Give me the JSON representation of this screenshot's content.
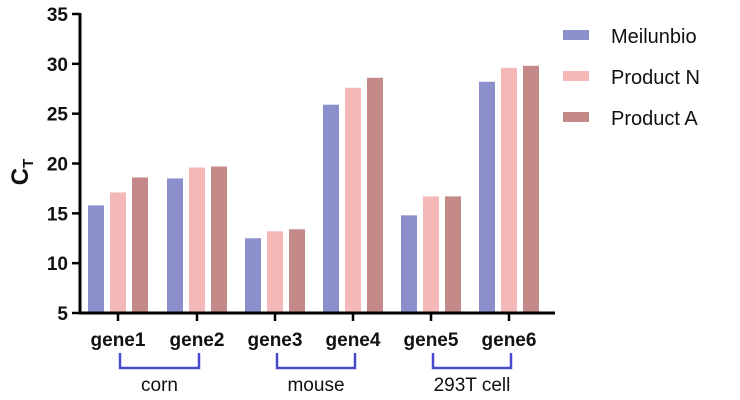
{
  "chart_data": {
    "type": "bar",
    "title": "",
    "xlabel": "",
    "ylabel": "C",
    "ylabel_subscript": "T",
    "ylim": [
      5,
      35
    ],
    "yticks": [
      5,
      10,
      15,
      20,
      25,
      30,
      35
    ],
    "grid": false,
    "legend_position": "top-right",
    "categories": [
      "gene1",
      "gene2",
      "gene3",
      "gene4",
      "gene5",
      "gene6"
    ],
    "groups": [
      {
        "label": "corn",
        "categories": [
          "gene1",
          "gene2"
        ]
      },
      {
        "label": "mouse",
        "categories": [
          "gene3",
          "gene4"
        ]
      },
      {
        "label": "293T cell",
        "categories": [
          "gene5",
          "gene6"
        ]
      }
    ],
    "series": [
      {
        "name": "Meilunbio",
        "color": "#8b8fcb",
        "values": [
          15.8,
          18.5,
          12.5,
          25.9,
          14.8,
          28.2
        ]
      },
      {
        "name": "Product N",
        "color": "#f5b8b9",
        "values": [
          17.1,
          19.6,
          13.2,
          27.6,
          16.7,
          29.6
        ]
      },
      {
        "name": "Product A",
        "color": "#c48a8a",
        "values": [
          18.6,
          19.7,
          13.4,
          28.6,
          16.7,
          29.8
        ]
      }
    ],
    "bracket_color": "#4a4ad0"
  }
}
